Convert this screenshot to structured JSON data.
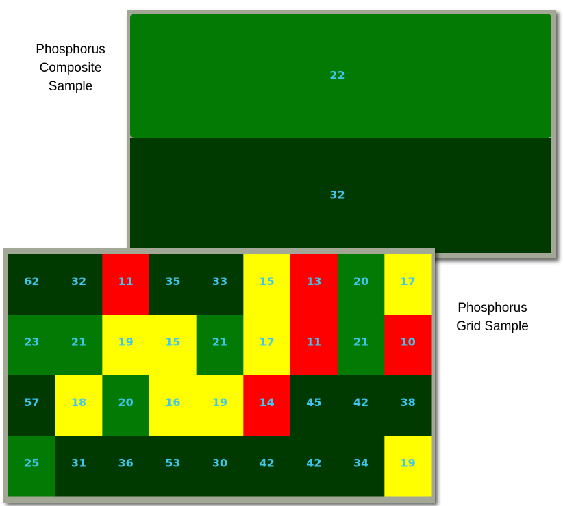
{
  "composite": {
    "label": [
      "Phosphorus",
      "Composite",
      "Sample"
    ],
    "zones": [
      {
        "value": 22,
        "color": "#037a03"
      },
      {
        "value": 32,
        "color": "#013a01"
      }
    ]
  },
  "grid": {
    "label": [
      "Phosphorus",
      "Grid  Sample"
    ],
    "rows": [
      [
        {
          "value": 62,
          "color": "#013a01"
        },
        {
          "value": 32,
          "color": "#013a01"
        },
        {
          "value": 11,
          "color": "#ff0000"
        },
        {
          "value": 35,
          "color": "#013a01"
        },
        {
          "value": 33,
          "color": "#013a01"
        },
        {
          "value": 15,
          "color": "#ffff00"
        },
        {
          "value": 13,
          "color": "#ff0000"
        },
        {
          "value": 20,
          "color": "#037a03"
        },
        {
          "value": 17,
          "color": "#ffff00"
        }
      ],
      [
        {
          "value": 23,
          "color": "#037a03"
        },
        {
          "value": 21,
          "color": "#037a03"
        },
        {
          "value": 19,
          "color": "#ffff00"
        },
        {
          "value": 15,
          "color": "#ffff00"
        },
        {
          "value": 21,
          "color": "#037a03"
        },
        {
          "value": 17,
          "color": "#ffff00"
        },
        {
          "value": 11,
          "color": "#ff0000"
        },
        {
          "value": 21,
          "color": "#037a03"
        },
        {
          "value": 10,
          "color": "#ff0000"
        }
      ],
      [
        {
          "value": 57,
          "color": "#013a01"
        },
        {
          "value": 18,
          "color": "#ffff00"
        },
        {
          "value": 20,
          "color": "#037a03"
        },
        {
          "value": 16,
          "color": "#ffff00"
        },
        {
          "value": 19,
          "color": "#ffff00"
        },
        {
          "value": 14,
          "color": "#ff0000"
        },
        {
          "value": 45,
          "color": "#013a01"
        },
        {
          "value": 42,
          "color": "#013a01"
        },
        {
          "value": 38,
          "color": "#013a01"
        }
      ],
      [
        {
          "value": 25,
          "color": "#037a03"
        },
        {
          "value": 31,
          "color": "#013a01"
        },
        {
          "value": 36,
          "color": "#013a01"
        },
        {
          "value": 53,
          "color": "#013a01"
        },
        {
          "value": 30,
          "color": "#013a01"
        },
        {
          "value": 42,
          "color": "#013a01"
        },
        {
          "value": 42,
          "color": "#013a01"
        },
        {
          "value": 34,
          "color": "#013a01"
        },
        {
          "value": 19,
          "color": "#ffff00"
        }
      ]
    ]
  }
}
